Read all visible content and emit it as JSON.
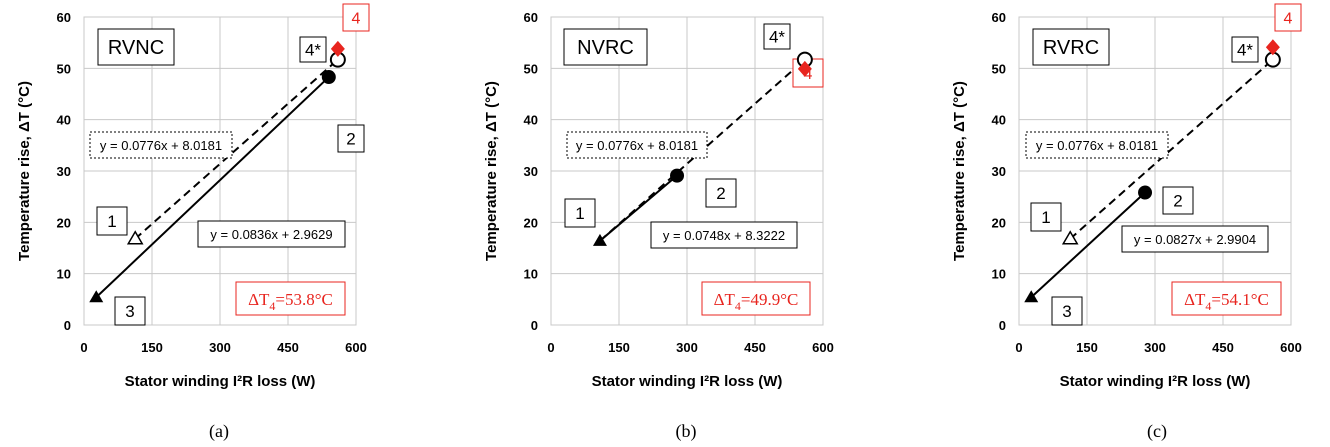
{
  "shared": {
    "xlabel": "Stator winding I²R loss (W)",
    "ylabel": "Temperature rise, ΔT (°C)",
    "colors": {
      "red": "#e8251f",
      "grid": "#c8c8c8",
      "black": "#000000"
    }
  },
  "chart_data": [
    {
      "type": "scatter",
      "caption": "(a)",
      "mode_label": "RVNC",
      "xlim": [
        0,
        600
      ],
      "ylim": [
        0,
        60
      ],
      "xticks": [
        "0",
        "150",
        "300",
        "450",
        "600"
      ],
      "yticks": [
        "0",
        "10",
        "20",
        "30",
        "40",
        "50",
        "60"
      ],
      "grid": true,
      "points": [
        {
          "label": "1",
          "x": 113,
          "y": 16.8,
          "marker": "open-triangle"
        },
        {
          "label": "2",
          "x": 540,
          "y": 48.3,
          "marker": "filled-circle"
        },
        {
          "label": "3",
          "x": 27,
          "y": 5.4,
          "marker": "filled-triangle"
        },
        {
          "label": "4*",
          "x": 560,
          "y": 51.7,
          "marker": "open-circle"
        },
        {
          "label": "4",
          "x": 560,
          "y": 53.8,
          "marker": "red-diamond"
        }
      ],
      "lines": [
        {
          "style": "dashed",
          "from": [
            113,
            16.8
          ],
          "to": [
            560,
            51.7
          ],
          "equation": "y = 0.0776x + 8.0181"
        },
        {
          "style": "solid",
          "from": [
            27,
            5.4
          ],
          "to": [
            540,
            48.3
          ],
          "equation": "y = 0.0836x + 2.9629"
        }
      ],
      "result": {
        "prefix": "ΔT",
        "sub": "4",
        "value": "=53.8°C"
      }
    },
    {
      "type": "scatter",
      "caption": "(b)",
      "mode_label": "NVRC",
      "xlim": [
        0,
        600
      ],
      "ylim": [
        0,
        60
      ],
      "xticks": [
        "0",
        "150",
        "300",
        "450",
        "600"
      ],
      "yticks": [
        "0",
        "10",
        "20",
        "30",
        "40",
        "50",
        "60"
      ],
      "grid": true,
      "points": [
        {
          "label": "1",
          "x": 108,
          "y": 16.4,
          "marker": "filled-triangle"
        },
        {
          "label": "2",
          "x": 278,
          "y": 29.1,
          "marker": "filled-circle"
        },
        {
          "label": "4*",
          "x": 560,
          "y": 51.7,
          "marker": "open-circle"
        },
        {
          "label": "4",
          "x": 560,
          "y": 49.9,
          "marker": "red-diamond"
        }
      ],
      "lines": [
        {
          "style": "dashed",
          "from": [
            108,
            16.4
          ],
          "to": [
            560,
            51.7
          ],
          "equation": "y = 0.0776x + 8.0181"
        },
        {
          "style": "solid",
          "from": [
            108,
            16.4
          ],
          "to": [
            278,
            29.1
          ],
          "equation": "y = 0.0748x + 8.3222"
        }
      ],
      "result": {
        "prefix": "ΔT",
        "sub": "4",
        "value": "=49.9°C"
      }
    },
    {
      "type": "scatter",
      "caption": "(c)",
      "mode_label": "RVRC",
      "xlim": [
        0,
        600
      ],
      "ylim": [
        0,
        60
      ],
      "xticks": [
        "0",
        "150",
        "300",
        "450",
        "600"
      ],
      "yticks": [
        "0",
        "10",
        "20",
        "30",
        "40",
        "50",
        "60"
      ],
      "grid": true,
      "points": [
        {
          "label": "1",
          "x": 113,
          "y": 16.8,
          "marker": "open-triangle"
        },
        {
          "label": "2",
          "x": 278,
          "y": 25.8,
          "marker": "filled-circle"
        },
        {
          "label": "3",
          "x": 27,
          "y": 5.4,
          "marker": "filled-triangle"
        },
        {
          "label": "4*",
          "x": 560,
          "y": 51.7,
          "marker": "open-circle"
        },
        {
          "label": "4",
          "x": 560,
          "y": 54.1,
          "marker": "red-diamond"
        }
      ],
      "lines": [
        {
          "style": "dashed",
          "from": [
            113,
            16.8
          ],
          "to": [
            560,
            51.7
          ],
          "equation": "y = 0.0776x + 8.0181"
        },
        {
          "style": "solid",
          "from": [
            27,
            5.4
          ],
          "to": [
            278,
            25.8
          ],
          "equation": "y = 0.0827x + 2.9904"
        }
      ],
      "result": {
        "prefix": "ΔT",
        "sub": "4",
        "value": "=54.1°C"
      }
    }
  ]
}
